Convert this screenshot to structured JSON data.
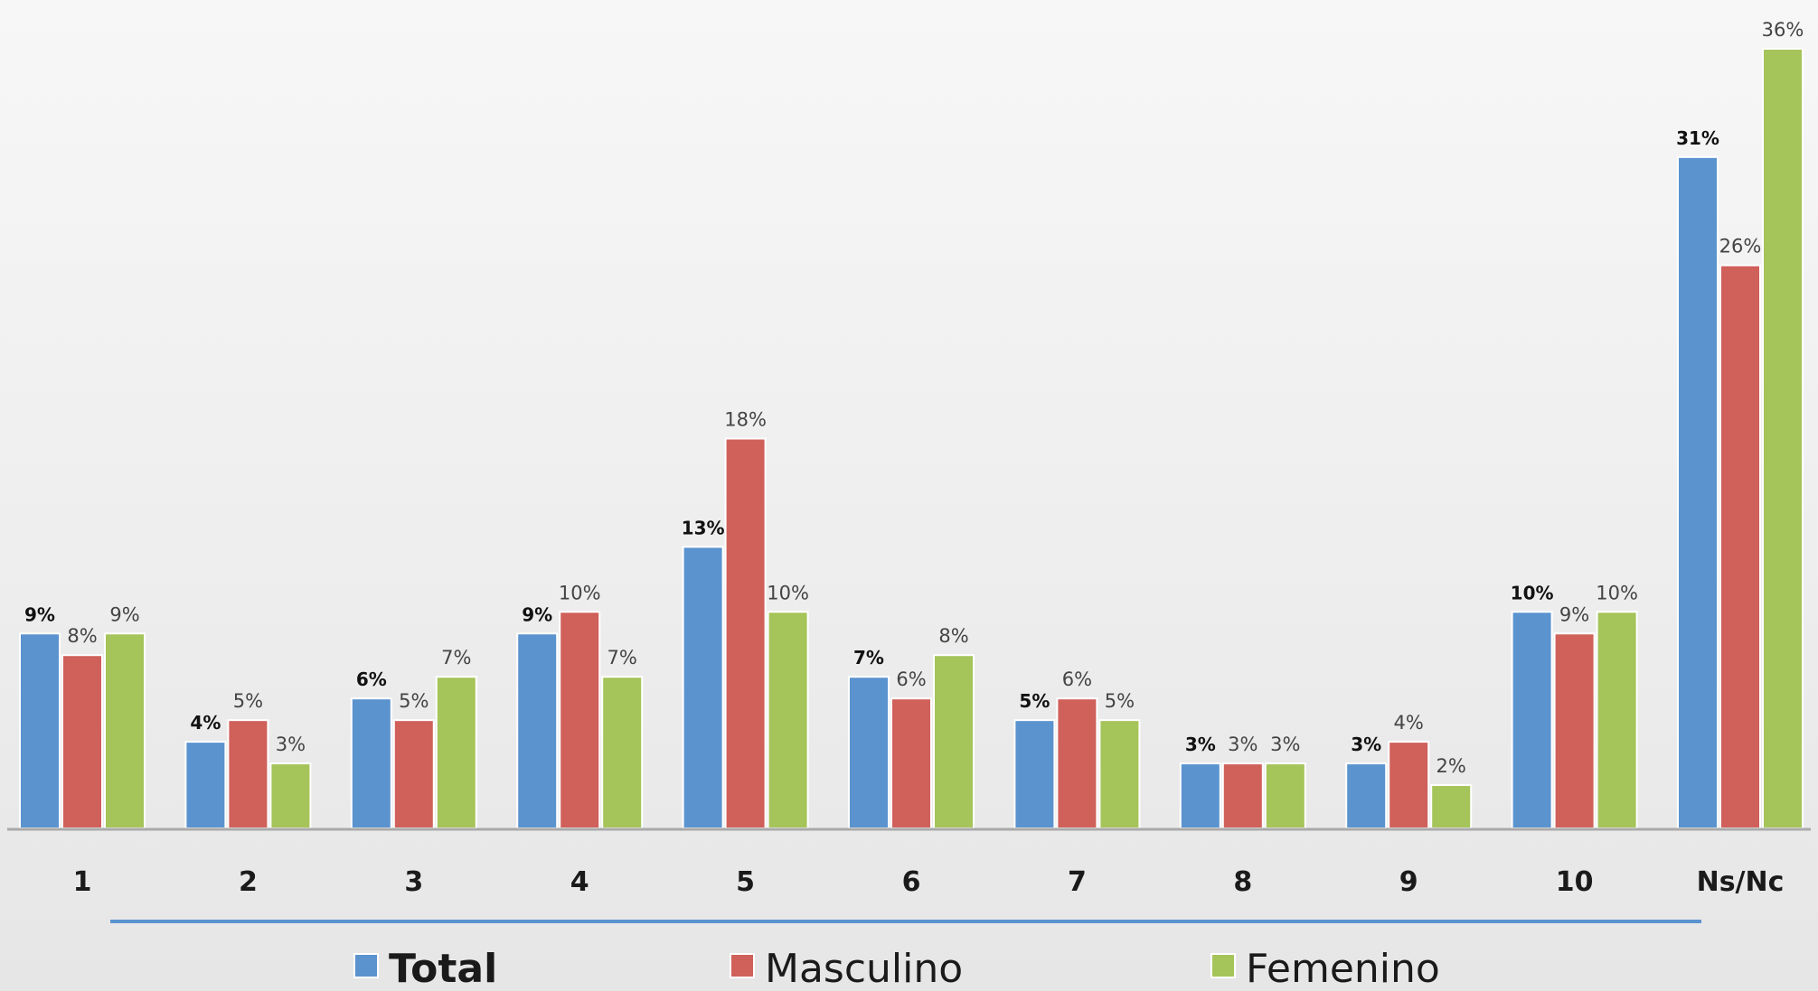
{
  "chart_data": {
    "type": "bar",
    "title": "",
    "xlabel": "",
    "ylabel": "",
    "ylim": [
      0,
      37
    ],
    "grid": false,
    "legend_position": "bottom",
    "categories": [
      "1",
      "2",
      "3",
      "4",
      "5",
      "6",
      "7",
      "8",
      "9",
      "10",
      "Ns/Nc"
    ],
    "series": [
      {
        "name": "Total",
        "color": "#5b93cf",
        "values": [
          9,
          4,
          6,
          9,
          13,
          7,
          5,
          3,
          3,
          10,
          31
        ],
        "labels": [
          "9%",
          "4%",
          "6%",
          "9%",
          "13%",
          "7%",
          "5%",
          "3%",
          "3%",
          "10%",
          "31%"
        ]
      },
      {
        "name": "Masculino",
        "color": "#d0605a",
        "values": [
          8,
          5,
          5,
          10,
          18,
          6,
          6,
          3,
          4,
          9,
          26
        ],
        "labels": [
          "8%",
          "5%",
          "5%",
          "10%",
          "18%",
          "6%",
          "6%",
          "3%",
          "4%",
          "9%",
          "26%"
        ]
      },
      {
        "name": "Femenino",
        "color": "#a5c45a",
        "values": [
          9,
          3,
          7,
          7,
          10,
          8,
          5,
          3,
          2,
          10,
          36
        ],
        "labels": [
          "9%",
          "3%",
          "7%",
          "7%",
          "10%",
          "8%",
          "5%",
          "3%",
          "2%",
          "10%",
          "36%"
        ]
      }
    ],
    "axis_line_color": "#a9a9a9",
    "separator_line_color": "#5b93cf"
  }
}
